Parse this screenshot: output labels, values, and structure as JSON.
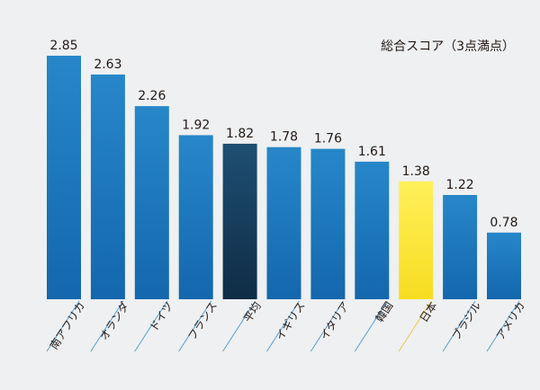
{
  "chart_data": {
    "type": "bar",
    "title": "総合スコア（3点満点）",
    "categories": [
      "南アフリカ",
      "オランダ",
      "ドイツ",
      "フランス",
      "平均",
      "イギリス",
      "イタリア",
      "韓国",
      "日本",
      "ブラジル",
      "アメリカ"
    ],
    "values": [
      2.85,
      2.63,
      2.26,
      1.92,
      1.82,
      1.78,
      1.76,
      1.61,
      1.38,
      1.22,
      0.78
    ],
    "value_labels": [
      "2.85",
      "2.63",
      "2.26",
      "1.92",
      "1.82",
      "1.78",
      "1.76",
      "1.61",
      "1.38",
      "1.22",
      "0.78"
    ],
    "ylim": [
      0,
      3
    ],
    "grid": false,
    "legend": "none",
    "colors": {
      "default": "#1a78be",
      "average": "#183f5d",
      "highlight": "#ffe433",
      "leader_default": "#5a9fd0",
      "leader_highlight": "#e8c84a",
      "background": "#eef0f1",
      "text": "#231815"
    },
    "highlight_category": "日本",
    "average_category": "平均"
  }
}
